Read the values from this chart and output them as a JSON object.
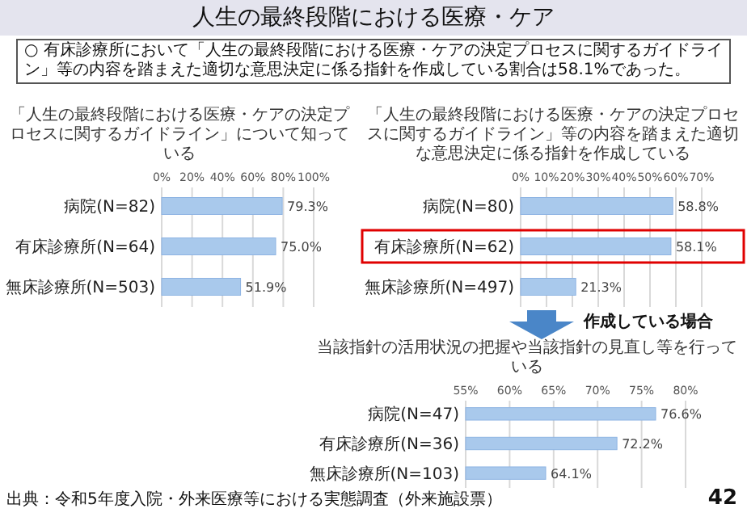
{
  "chart_data": [
    {
      "type": "other",
      "title": "人生の最終段階における医療・ケア",
      "subtitle": "○ 有床診療所において「人生の最終段階における医療・ケアの決定プロセスに関するガイドライン」等の内容を踏まえた適切な意思決定に係る指針を作成している割合は58.1%であった。",
      "annotations": [
        "出典：令和5年度入院・外来医療等における実態調査（外来施設票）",
        "42"
      ]
    },
    {
      "type": "bar",
      "orientation": "horizontal",
      "title": "「人生の最終段階における医療・ケアの決定プロセスに関するガイドライン」について知っている",
      "categories": [
        "病院(N=82)",
        "有床診療所(N=64)",
        "無床診療所(N=503)"
      ],
      "values": [
        79.3,
        75.0,
        51.9
      ],
      "value_labels": [
        "79.3%",
        "75.0%",
        "51.9%"
      ],
      "color": "#a9c9ec",
      "xlim": [
        0,
        100
      ],
      "xticks": [
        {
          "value": 0,
          "label": "0%"
        },
        {
          "value": 20,
          "label": "20%"
        },
        {
          "value": 40,
          "label": "40%"
        },
        {
          "value": 60,
          "label": "60%"
        },
        {
          "value": 80,
          "label": "80%"
        },
        {
          "value": 100,
          "label": "100%"
        }
      ],
      "grid": "x"
    },
    {
      "type": "bar",
      "orientation": "horizontal",
      "title": "「人生の最終段階における医療・ケアの決定プロセスに関するガイドライン」等の内容を踏まえた適切な意思決定に係る指針を作成している",
      "categories": [
        "病院(N=80)",
        "有床診療所(N=62)",
        "無床診療所(N=497)"
      ],
      "values": [
        58.8,
        58.1,
        21.3
      ],
      "value_labels": [
        "58.8%",
        "58.1%",
        "21.3%"
      ],
      "color": "#a9c9ec",
      "xlim": [
        0,
        70
      ],
      "xticks": [
        {
          "value": 0,
          "label": "0%"
        },
        {
          "value": 10,
          "label": "10%"
        },
        {
          "value": 20,
          "label": "20%"
        },
        {
          "value": 30,
          "label": "30%"
        },
        {
          "value": 40,
          "label": "40%"
        },
        {
          "value": 50,
          "label": "50%"
        },
        {
          "value": 60,
          "label": "60%"
        },
        {
          "value": 70,
          "label": "70%"
        }
      ],
      "grid": "x"
    },
    {
      "type": "bar",
      "orientation": "horizontal",
      "title": "当該指針の活用状況の把握や当該指針の見直し等を行っている",
      "annotations": [
        "作成している場合"
      ],
      "categories": [
        "病院(N=47)",
        "有床診療所(N=36)",
        "無床診療所(N=103)"
      ],
      "values": [
        76.6,
        72.2,
        64.1
      ],
      "value_labels": [
        "76.6%",
        "72.2%",
        "64.1%"
      ],
      "color": "#a9c9ec",
      "xlim": [
        55,
        80
      ],
      "xticks": [
        {
          "value": 55,
          "label": "55%"
        },
        {
          "value": 60,
          "label": "60%"
        },
        {
          "value": 65,
          "label": "65%"
        },
        {
          "value": 70,
          "label": "70%"
        },
        {
          "value": 75,
          "label": "75%"
        },
        {
          "value": 80,
          "label": "80%"
        }
      ],
      "grid": "x"
    }
  ]
}
